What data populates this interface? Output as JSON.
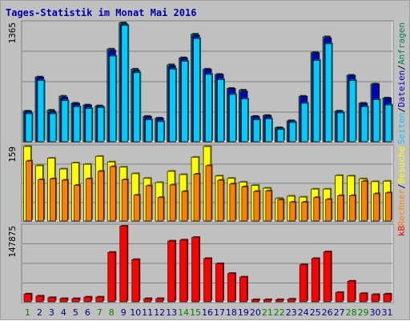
{
  "chart_data": {
    "type": "bar",
    "title": "Tages-Statistik im Monat Mai 2016",
    "categories": [
      "1",
      "2",
      "3",
      "4",
      "5",
      "6",
      "7",
      "8",
      "9",
      "10",
      "11",
      "12",
      "13",
      "14",
      "15",
      "16",
      "17",
      "18",
      "19",
      "20",
      "21",
      "22",
      "23",
      "24",
      "25",
      "26",
      "27",
      "28",
      "29",
      "30",
      "31"
    ],
    "weekend_days": [
      "1",
      "7",
      "8",
      "14",
      "15",
      "21",
      "22",
      "28",
      "29"
    ],
    "colors": {
      "weekday_label": "#000080",
      "weekend_label": "#008000",
      "anfragen": "#008060",
      "dateien": "#0000cc",
      "seiten": "#00ccff",
      "besuche": "#ffff00",
      "rechner": "#ff8000",
      "kb": "#ff0000"
    },
    "panels": [
      {
        "id": "top",
        "ymax_label": "1365",
        "ylim": [
          0,
          1365
        ],
        "right_labels": [
          {
            "text": "Anfragen",
            "color": "#008060"
          },
          {
            "text": "Dateien",
            "color": "#0000cc"
          },
          {
            "text": "Seiten",
            "color": "#00ccff"
          }
        ],
        "series": [
          {
            "name": "Anfragen",
            "values": [
              350,
              740,
              360,
              520,
              440,
              420,
              410,
              1060,
              1360,
              830,
              290,
              270,
              880,
              960,
              1230,
              830,
              770,
              610,
              590,
              290,
              300,
              160,
              240,
              520,
              1020,
              1200,
              350,
              760,
              440,
              660,
              500
            ]
          },
          {
            "name": "Dateien",
            "values": [
              340,
              730,
              340,
              500,
              430,
              410,
              400,
              1040,
              1340,
              810,
              280,
              260,
              860,
              950,
              1210,
              820,
              760,
              600,
              570,
              280,
              290,
              150,
              230,
              510,
              1010,
              1180,
              340,
              750,
              430,
              650,
              490
            ]
          },
          {
            "name": "Seiten",
            "values": [
              320,
              700,
              320,
              470,
              400,
              380,
              390,
              980,
              1330,
              790,
              250,
              230,
              830,
              920,
              1180,
              770,
              710,
              540,
              490,
              250,
              260,
              140,
              220,
              440,
              930,
              1120,
              330,
              700,
              400,
              480,
              420
            ]
          }
        ]
      },
      {
        "id": "middle",
        "ymax_label": "159",
        "ylim": [
          0,
          159
        ],
        "right_labels": [
          {
            "text": "Besuche",
            "color": "#ffff00"
          },
          {
            "text": "Rechner",
            "color": "#ff8000"
          }
        ],
        "series": [
          {
            "name": "Besuche",
            "values": [
              159,
              118,
              134,
              111,
              124,
              121,
              138,
              126,
              115,
              101,
              91,
              82,
              106,
              99,
              136,
              159,
              96,
              91,
              83,
              76,
              70,
              48,
              53,
              51,
              68,
              68,
              97,
              96,
              90,
              84,
              85
            ]
          },
          {
            "name": "Rechner",
            "values": [
              128,
              88,
              90,
              87,
              76,
              90,
              106,
              116,
              88,
              55,
              75,
              50,
              77,
              63,
              100,
              118,
              87,
              79,
              73,
              63,
              64,
              45,
              40,
              40,
              50,
              46,
              54,
              54,
              85,
              58,
              60
            ]
          }
        ]
      },
      {
        "id": "bottom",
        "ymax_label": "147875",
        "ylim": [
          0,
          147875
        ],
        "right_labels": [
          {
            "text": "kB",
            "color": "#ff0000"
          }
        ],
        "series": [
          {
            "name": "kB",
            "values": [
              15000,
              11000,
              8000,
              6000,
              6000,
              9000,
              9000,
              96000,
              147000,
              82000,
              6000,
              6000,
              118000,
              120000,
              125000,
              84000,
              74000,
              55000,
              48000,
              4000,
              4000,
              4000,
              5000,
              72000,
              84000,
              97000,
              18000,
              40000,
              16000,
              14000,
              15000
            ]
          }
        ]
      }
    ]
  }
}
